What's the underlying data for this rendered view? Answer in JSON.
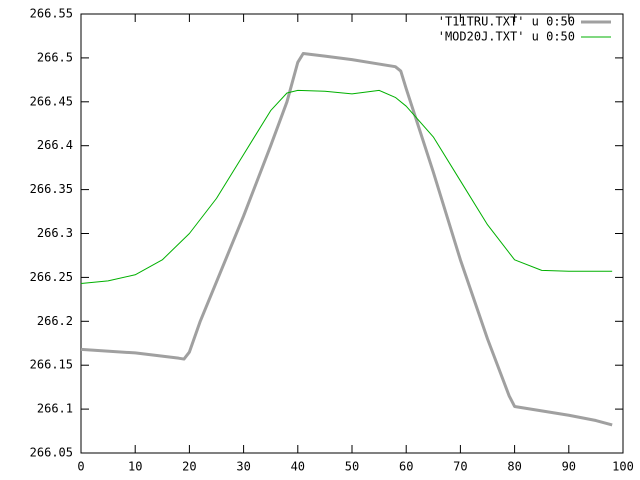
{
  "chart_data": {
    "type": "line",
    "ylim": [
      266.05,
      266.55
    ],
    "yticks": [
      266.05,
      266.1,
      266.15,
      266.2,
      266.25,
      266.3,
      266.35,
      266.4,
      266.45,
      266.5,
      266.55
    ],
    "xlim": [
      0,
      100
    ],
    "xticks": [
      0,
      10,
      20,
      30,
      40,
      50,
      60,
      70,
      80,
      90,
      100
    ],
    "legend": "top-right",
    "series": [
      {
        "name": "'T11TRU.TXT' u 0:50",
        "color": "#a0a0a0",
        "width": 3,
        "x": [
          0,
          10,
          18,
          19,
          20,
          22,
          25,
          30,
          35,
          38,
          40,
          41,
          45,
          50,
          55,
          58,
          59,
          60,
          65,
          70,
          75,
          79,
          80,
          85,
          90,
          95,
          98
        ],
        "values": [
          266.168,
          266.164,
          266.158,
          266.157,
          266.165,
          266.2,
          266.245,
          266.32,
          266.4,
          266.45,
          266.495,
          266.505,
          266.502,
          266.498,
          266.493,
          266.49,
          266.485,
          266.465,
          266.37,
          266.27,
          266.18,
          266.115,
          266.103,
          266.098,
          266.093,
          266.087,
          266.082
        ]
      },
      {
        "name": "'MOD20J.TXT' u 0:50",
        "color": "#00b000",
        "width": 1,
        "x": [
          0,
          5,
          10,
          15,
          20,
          25,
          30,
          35,
          38,
          40,
          45,
          50,
          55,
          58,
          60,
          65,
          70,
          75,
          80,
          85,
          90,
          98
        ],
        "values": [
          266.243,
          266.246,
          266.253,
          266.27,
          266.3,
          266.34,
          266.39,
          266.44,
          266.46,
          266.463,
          266.462,
          266.459,
          266.463,
          266.455,
          266.445,
          266.41,
          266.36,
          266.31,
          266.27,
          266.258,
          266.257,
          266.257
        ]
      }
    ]
  }
}
